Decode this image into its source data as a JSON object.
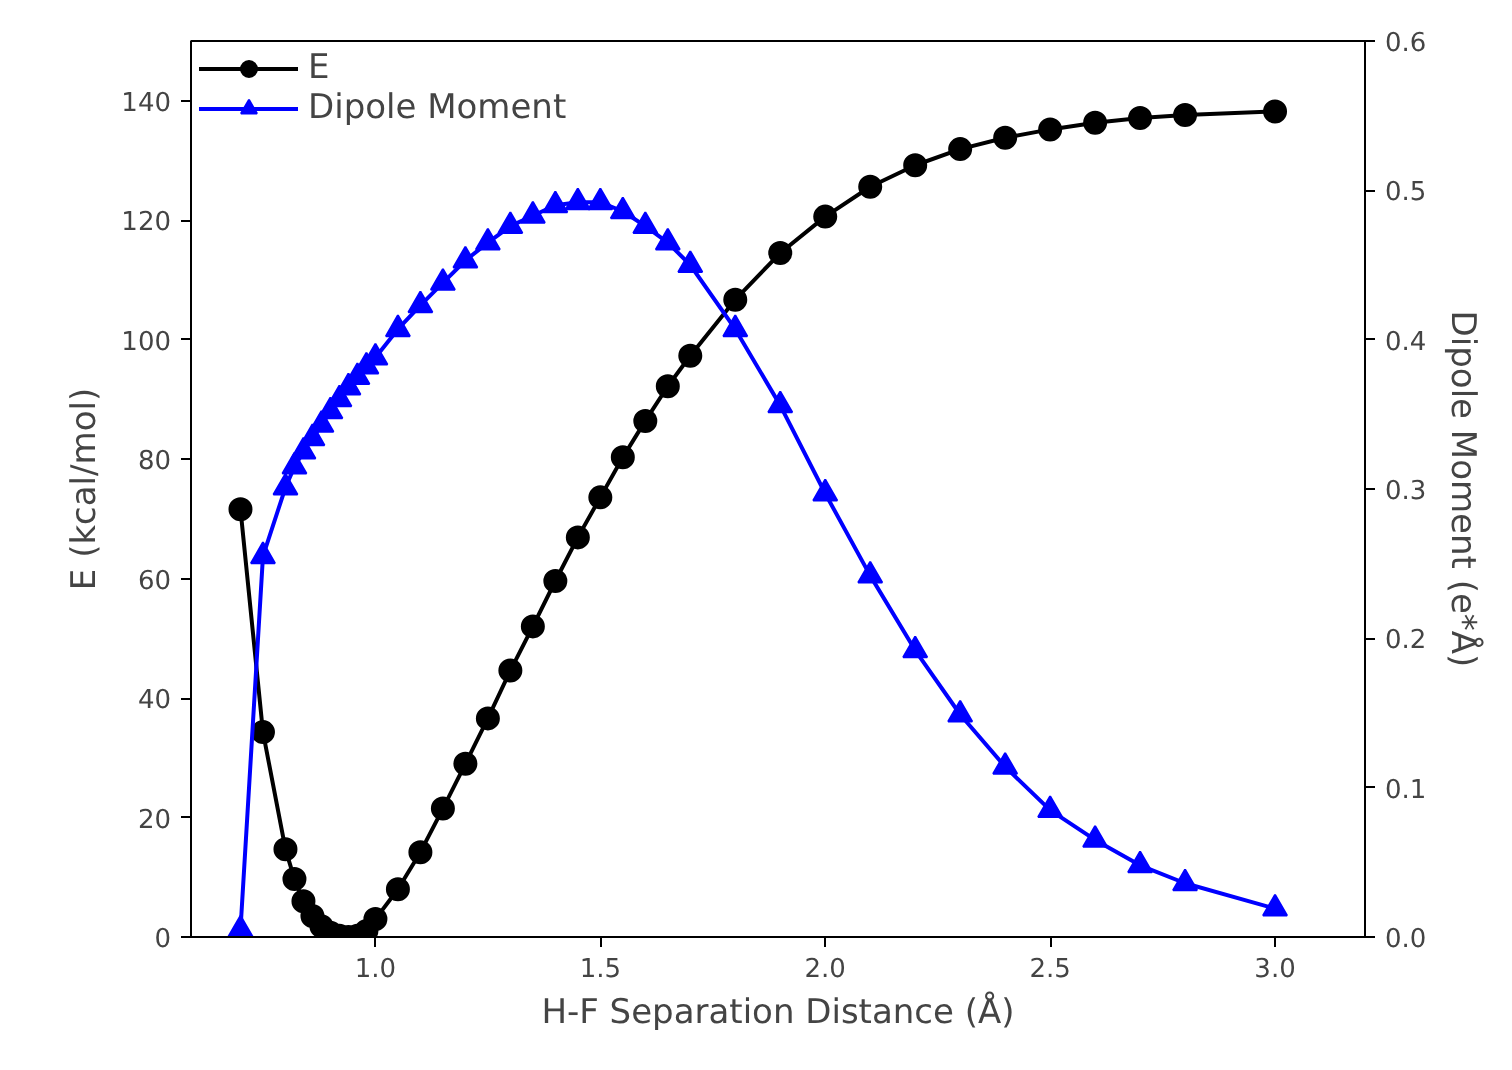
{
  "chart_data": {
    "type": "line",
    "xlabel": "H-F Separation Distance (Å)",
    "ylabel": "E (kcal/mol)",
    "y2label": "Dipole Moment (e*Å)",
    "x": [
      0.7,
      0.75,
      0.8,
      0.82,
      0.84,
      0.86,
      0.88,
      0.9,
      0.92,
      0.94,
      0.96,
      0.98,
      1.0,
      1.05,
      1.1,
      1.15,
      1.2,
      1.25,
      1.3,
      1.35,
      1.4,
      1.45,
      1.5,
      1.55,
      1.6,
      1.65,
      1.7,
      1.8,
      1.9,
      2.0,
      2.1,
      2.2,
      2.3,
      2.4,
      2.5,
      2.6,
      2.7,
      2.8,
      3.0
    ],
    "series": [
      {
        "name": "E",
        "color": "#000000",
        "marker": "circle",
        "values": [
          71.6,
          34.3,
          14.7,
          9.7,
          6.0,
          3.5,
          1.8,
          0.7,
          0.2,
          0.0,
          0.2,
          1.0,
          3.0,
          8.0,
          14.2,
          21.5,
          29.0,
          36.6,
          44.6,
          52.0,
          59.6,
          66.9,
          73.6,
          80.3,
          86.4,
          92.2,
          97.3,
          106.7,
          114.5,
          120.6,
          125.6,
          129.2,
          131.9,
          133.8,
          135.2,
          136.3,
          137.1,
          137.6,
          138.2
        ]
      },
      {
        "name": "Dipole Moment",
        "color": "#0000ff",
        "marker": "triangle",
        "axis": "y2",
        "values": [
          0.005,
          0.255,
          0.301,
          0.315,
          0.325,
          0.334,
          0.343,
          0.352,
          0.36,
          0.368,
          0.375,
          0.382,
          0.388,
          0.407,
          0.423,
          0.438,
          0.453,
          0.465,
          0.476,
          0.483,
          0.49,
          0.492,
          0.492,
          0.486,
          0.476,
          0.465,
          0.45,
          0.407,
          0.356,
          0.297,
          0.242,
          0.192,
          0.149,
          0.114,
          0.085,
          0.065,
          0.048,
          0.036,
          0.019
        ]
      }
    ],
    "xlim": [
      0.59,
      3.2
    ],
    "xticks": [
      {
        "value": 1.0,
        "label": "1.0"
      },
      {
        "value": 1.5,
        "label": "1.5"
      },
      {
        "value": 2.0,
        "label": "2.0"
      },
      {
        "value": 2.5,
        "label": "2.5"
      },
      {
        "value": 3.0,
        "label": "3.0"
      }
    ],
    "ylim": [
      0,
      150
    ],
    "yticks": [
      0,
      20,
      40,
      60,
      80,
      100,
      120,
      140
    ],
    "y2lim": [
      0,
      0.6
    ],
    "y2ticks": [
      {
        "value": 0,
        "label": "0.0"
      },
      0.1,
      0.2,
      0.3,
      0.4,
      0.5,
      0.6
    ],
    "grid": false,
    "legend": "top left",
    "line_style": "solid"
  }
}
